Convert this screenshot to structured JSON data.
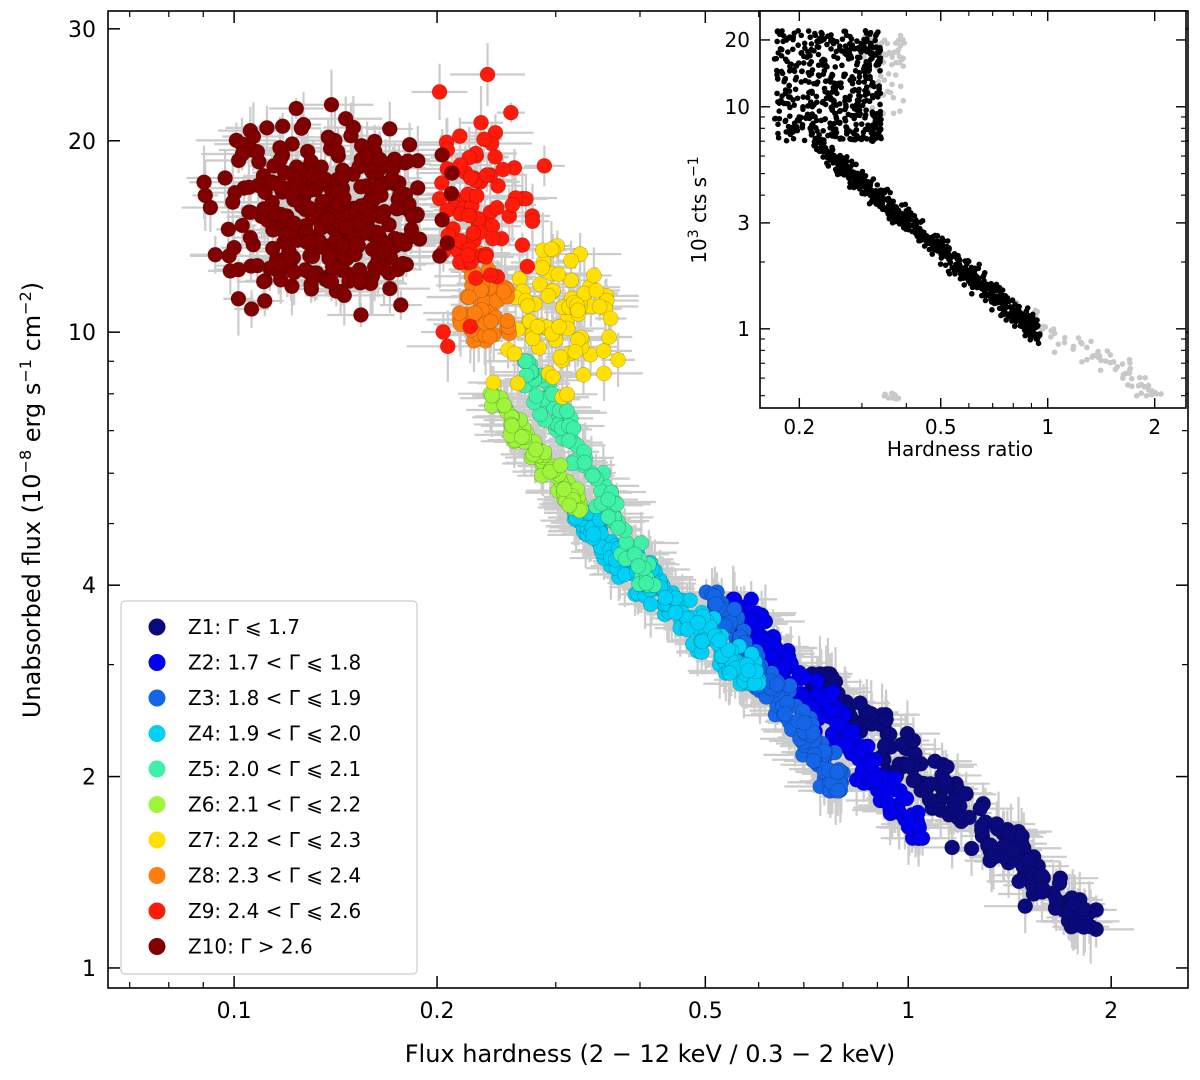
{
  "chart_data": [
    {
      "type": "scatter",
      "name": "main",
      "xlabel_parts": [
        "Flux hardness (2 ",
        "−",
        " 12 keV / 0.3 ",
        "−",
        " 2 keV)"
      ],
      "ylabel_parts": [
        "Unabsorbed flux (10",
        "−8",
        " erg s",
        "−1",
        " cm",
        "−2",
        ")"
      ],
      "x_scale": "log",
      "y_scale": "log",
      "xlim": [
        0.065,
        2.6
      ],
      "ylim": [
        0.93,
        32
      ],
      "xticks": [
        {
          "value": 0.1,
          "label": "0.1"
        },
        {
          "value": 0.2,
          "label": "0.2"
        },
        {
          "value": 0.5,
          "label": "0.5"
        },
        {
          "value": 1,
          "label": "1"
        },
        {
          "value": 2,
          "label": "2"
        }
      ],
      "yticks": [
        {
          "value": 1,
          "label": "1"
        },
        {
          "value": 2,
          "label": "2"
        },
        {
          "value": 4,
          "label": "4"
        },
        {
          "value": 10,
          "label": "10"
        },
        {
          "value": 20,
          "label": "20"
        },
        {
          "value": 30,
          "label": "30"
        }
      ],
      "legend_position": "lower-left",
      "error_bar_color": "#cccccc",
      "zones": [
        {
          "id": "Z1",
          "label": "Z1: Γ ⩽ 1.7",
          "color": "#0a0a7d",
          "x_range": [
            0.72,
            1.9
          ],
          "y_range": [
            1.15,
            2.9
          ],
          "n": 190
        },
        {
          "id": "Z2",
          "label": "Z2: 1.7 < Γ ⩽ 1.8",
          "color": "#0000ee",
          "x_range": [
            0.55,
            1.05
          ],
          "y_range": [
            1.6,
            3.8
          ],
          "n": 160
        },
        {
          "id": "Z3",
          "label": "Z3: 1.8 < Γ ⩽ 1.9",
          "color": "#1565e8",
          "x_range": [
            0.5,
            0.8
          ],
          "y_range": [
            1.9,
            3.9
          ],
          "n": 170
        },
        {
          "id": "Z4",
          "label": "Z4: 1.9 < Γ ⩽ 2.0",
          "color": "#00d0f5",
          "x_range": [
            0.32,
            0.6
          ],
          "y_range": [
            2.8,
            5.2
          ],
          "n": 190
        },
        {
          "id": "Z5",
          "label": "Z5: 2.0 < Γ ⩽ 2.1",
          "color": "#3ff0a8",
          "x_range": [
            0.27,
            0.42
          ],
          "y_range": [
            4.0,
            9.0
          ],
          "n": 90
        },
        {
          "id": "Z6",
          "label": "Z6: 2.1 < Γ ⩽ 2.2",
          "color": "#9ef53c",
          "x_range": [
            0.24,
            0.33
          ],
          "y_range": [
            5.2,
            8.0
          ],
          "n": 70
        },
        {
          "id": "Z7",
          "label": "Z7: 2.2 < Γ ⩽ 2.3",
          "color": "#ffe000",
          "x_range": [
            0.24,
            0.4
          ],
          "y_range": [
            7.5,
            15.0
          ],
          "n": 80
        },
        {
          "id": "Z8",
          "label": "Z8: 2.3 < Γ ⩽ 2.4",
          "color": "#ff7f0e",
          "x_range": [
            0.21,
            0.27
          ],
          "y_range": [
            9.0,
            13.5
          ],
          "n": 45
        },
        {
          "id": "Z9",
          "label": "Z9: 2.4 < Γ ⩽ 2.6",
          "color": "#ff1a0a",
          "x_range": [
            0.18,
            0.29
          ],
          "y_range": [
            9.5,
            27.0
          ],
          "n": 80
        },
        {
          "id": "Z10",
          "label": "Z10: Γ > 2.6",
          "color": "#800000",
          "x_range": [
            0.085,
            0.22
          ],
          "y_range": [
            10.0,
            24.0
          ],
          "n": 320
        }
      ]
    },
    {
      "type": "scatter",
      "name": "inset",
      "xlabel": "Hardness ratio",
      "ylabel_parts": [
        "10",
        "3",
        " cts s",
        "−1"
      ],
      "x_scale": "log",
      "y_scale": "log",
      "xlim": [
        0.155,
        2.45
      ],
      "ylim": [
        0.44,
        27
      ],
      "xticks": [
        {
          "value": 0.2,
          "label": "0.2"
        },
        {
          "value": 0.5,
          "label": "0.5"
        },
        {
          "value": 1,
          "label": "1"
        },
        {
          "value": 2,
          "label": "2"
        }
      ],
      "yticks": [
        {
          "value": 1,
          "label": "1"
        },
        {
          "value": 3,
          "label": "3"
        },
        {
          "value": 10,
          "label": "10"
        },
        {
          "value": 20,
          "label": "20"
        }
      ],
      "series": [
        {
          "name": "selected",
          "color": "#000000",
          "description": "dense black track from upper left (hardness 0.17-0.35, rate 8-22) down to hardness 0.8-1.0, rate ~1"
        },
        {
          "name": "excluded",
          "color": "#c8c8c8",
          "description": "grey points: hardness 0.3-0.4 at rate 10-20, and tail from hardness 0.8 to 2.1 at rate 0.45-1.3"
        }
      ]
    }
  ]
}
